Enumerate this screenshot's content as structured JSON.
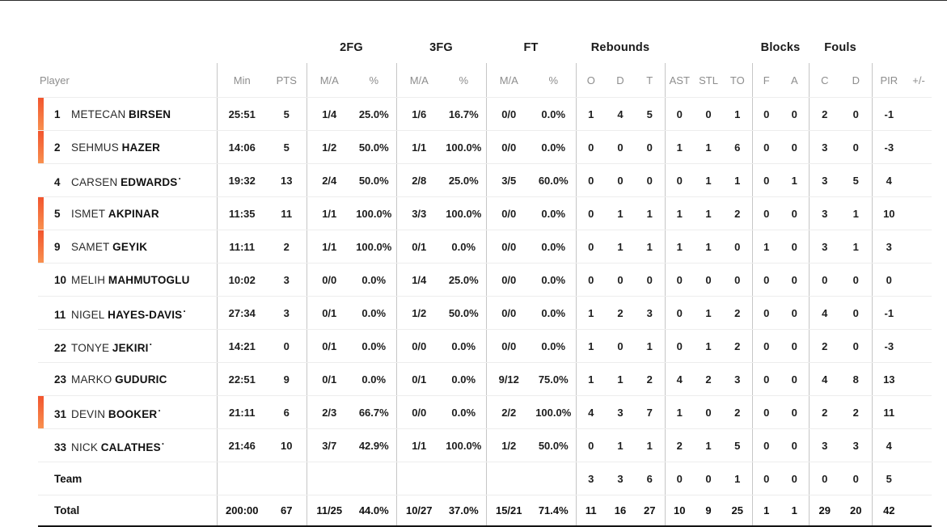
{
  "colors": {
    "oncourt_bar_top": "#f2552e",
    "oncourt_bar_bottom": "#f8904f",
    "divider": "#c6c6c6",
    "row_line": "#ededed"
  },
  "table": {
    "group_headers": {
      "fg2": "2FG",
      "fg3": "3FG",
      "ft": "FT",
      "rebounds": "Rebounds",
      "blocks": "Blocks",
      "fouls": "Fouls"
    },
    "columns": {
      "player": "Player",
      "min": "Min",
      "pts": "PTS",
      "fg2_ma": "M/A",
      "fg2_pct": "%",
      "fg3_ma": "M/A",
      "fg3_pct": "%",
      "ft_ma": "M/A",
      "ft_pct": "%",
      "reb_o": "O",
      "reb_d": "D",
      "reb_t": "T",
      "ast": "AST",
      "stl": "STL",
      "to": "TO",
      "blk_f": "F",
      "blk_a": "A",
      "foul_c": "C",
      "foul_d": "D",
      "pir": "PIR",
      "plus_minus": "+/-"
    },
    "rows": [
      {
        "number": "1",
        "first_name": "METECAN",
        "last_name": "BIRSEN",
        "starter_mark": "",
        "oncourt": true,
        "min": "25:51",
        "pts": "5",
        "fg2_ma": "1/4",
        "fg2_pct": "25.0%",
        "fg3_ma": "1/6",
        "fg3_pct": "16.7%",
        "ft_ma": "0/0",
        "ft_pct": "0.0%",
        "reb_o": "1",
        "reb_d": "4",
        "reb_t": "5",
        "ast": "0",
        "stl": "0",
        "to": "1",
        "blk_f": "0",
        "blk_a": "0",
        "foul_c": "2",
        "foul_d": "0",
        "pir": "-1",
        "plus_minus": ""
      },
      {
        "number": "2",
        "first_name": "SEHMUS",
        "last_name": "HAZER",
        "starter_mark": "",
        "oncourt": true,
        "min": "14:06",
        "pts": "5",
        "fg2_ma": "1/2",
        "fg2_pct": "50.0%",
        "fg3_ma": "1/1",
        "fg3_pct": "100.0%",
        "ft_ma": "0/0",
        "ft_pct": "0.0%",
        "reb_o": "0",
        "reb_d": "0",
        "reb_t": "0",
        "ast": "1",
        "stl": "1",
        "to": "6",
        "blk_f": "0",
        "blk_a": "0",
        "foul_c": "3",
        "foul_d": "0",
        "pir": "-3",
        "plus_minus": ""
      },
      {
        "number": "4",
        "first_name": "CARSEN",
        "last_name": "EDWARDS",
        "starter_mark": "·",
        "oncourt": false,
        "min": "19:32",
        "pts": "13",
        "fg2_ma": "2/4",
        "fg2_pct": "50.0%",
        "fg3_ma": "2/8",
        "fg3_pct": "25.0%",
        "ft_ma": "3/5",
        "ft_pct": "60.0%",
        "reb_o": "0",
        "reb_d": "0",
        "reb_t": "0",
        "ast": "0",
        "stl": "1",
        "to": "1",
        "blk_f": "0",
        "blk_a": "1",
        "foul_c": "3",
        "foul_d": "5",
        "pir": "4",
        "plus_minus": ""
      },
      {
        "number": "5",
        "first_name": "ISMET",
        "last_name": "AKPINAR",
        "starter_mark": "",
        "oncourt": true,
        "min": "11:35",
        "pts": "11",
        "fg2_ma": "1/1",
        "fg2_pct": "100.0%",
        "fg3_ma": "3/3",
        "fg3_pct": "100.0%",
        "ft_ma": "0/0",
        "ft_pct": "0.0%",
        "reb_o": "0",
        "reb_d": "1",
        "reb_t": "1",
        "ast": "1",
        "stl": "1",
        "to": "2",
        "blk_f": "0",
        "blk_a": "0",
        "foul_c": "3",
        "foul_d": "1",
        "pir": "10",
        "plus_minus": ""
      },
      {
        "number": "9",
        "first_name": "SAMET",
        "last_name": "GEYIK",
        "starter_mark": "",
        "oncourt": true,
        "min": "11:11",
        "pts": "2",
        "fg2_ma": "1/1",
        "fg2_pct": "100.0%",
        "fg3_ma": "0/1",
        "fg3_pct": "0.0%",
        "ft_ma": "0/0",
        "ft_pct": "0.0%",
        "reb_o": "0",
        "reb_d": "1",
        "reb_t": "1",
        "ast": "1",
        "stl": "1",
        "to": "0",
        "blk_f": "1",
        "blk_a": "0",
        "foul_c": "3",
        "foul_d": "1",
        "pir": "3",
        "plus_minus": ""
      },
      {
        "number": "10",
        "first_name": "MELIH",
        "last_name": "MAHMUTOGLU",
        "starter_mark": "",
        "oncourt": false,
        "min": "10:02",
        "pts": "3",
        "fg2_ma": "0/0",
        "fg2_pct": "0.0%",
        "fg3_ma": "1/4",
        "fg3_pct": "25.0%",
        "ft_ma": "0/0",
        "ft_pct": "0.0%",
        "reb_o": "0",
        "reb_d": "0",
        "reb_t": "0",
        "ast": "0",
        "stl": "0",
        "to": "0",
        "blk_f": "0",
        "blk_a": "0",
        "foul_c": "0",
        "foul_d": "0",
        "pir": "0",
        "plus_minus": ""
      },
      {
        "number": "11",
        "first_name": "NIGEL",
        "last_name": "HAYES-DAVIS",
        "starter_mark": "·",
        "oncourt": false,
        "min": "27:34",
        "pts": "3",
        "fg2_ma": "0/1",
        "fg2_pct": "0.0%",
        "fg3_ma": "1/2",
        "fg3_pct": "50.0%",
        "ft_ma": "0/0",
        "ft_pct": "0.0%",
        "reb_o": "1",
        "reb_d": "2",
        "reb_t": "3",
        "ast": "0",
        "stl": "1",
        "to": "2",
        "blk_f": "0",
        "blk_a": "0",
        "foul_c": "4",
        "foul_d": "0",
        "pir": "-1",
        "plus_minus": ""
      },
      {
        "number": "22",
        "first_name": "TONYE",
        "last_name": "JEKIRI",
        "starter_mark": "·",
        "oncourt": false,
        "min": "14:21",
        "pts": "0",
        "fg2_ma": "0/1",
        "fg2_pct": "0.0%",
        "fg3_ma": "0/0",
        "fg3_pct": "0.0%",
        "ft_ma": "0/0",
        "ft_pct": "0.0%",
        "reb_o": "1",
        "reb_d": "0",
        "reb_t": "1",
        "ast": "0",
        "stl": "1",
        "to": "2",
        "blk_f": "0",
        "blk_a": "0",
        "foul_c": "2",
        "foul_d": "0",
        "pir": "-3",
        "plus_minus": ""
      },
      {
        "number": "23",
        "first_name": "MARKO",
        "last_name": "GUDURIC",
        "starter_mark": "",
        "oncourt": false,
        "min": "22:51",
        "pts": "9",
        "fg2_ma": "0/1",
        "fg2_pct": "0.0%",
        "fg3_ma": "0/1",
        "fg3_pct": "0.0%",
        "ft_ma": "9/12",
        "ft_pct": "75.0%",
        "reb_o": "1",
        "reb_d": "1",
        "reb_t": "2",
        "ast": "4",
        "stl": "2",
        "to": "3",
        "blk_f": "0",
        "blk_a": "0",
        "foul_c": "4",
        "foul_d": "8",
        "pir": "13",
        "plus_minus": ""
      },
      {
        "number": "31",
        "first_name": "DEVIN",
        "last_name": "BOOKER",
        "starter_mark": "·",
        "oncourt": true,
        "min": "21:11",
        "pts": "6",
        "fg2_ma": "2/3",
        "fg2_pct": "66.7%",
        "fg3_ma": "0/0",
        "fg3_pct": "0.0%",
        "ft_ma": "2/2",
        "ft_pct": "100.0%",
        "reb_o": "4",
        "reb_d": "3",
        "reb_t": "7",
        "ast": "1",
        "stl": "0",
        "to": "2",
        "blk_f": "0",
        "blk_a": "0",
        "foul_c": "2",
        "foul_d": "2",
        "pir": "11",
        "plus_minus": ""
      },
      {
        "number": "33",
        "first_name": "NICK",
        "last_name": "CALATHES",
        "starter_mark": "·",
        "oncourt": false,
        "min": "21:46",
        "pts": "10",
        "fg2_ma": "3/7",
        "fg2_pct": "42.9%",
        "fg3_ma": "1/1",
        "fg3_pct": "100.0%",
        "ft_ma": "1/2",
        "ft_pct": "50.0%",
        "reb_o": "0",
        "reb_d": "1",
        "reb_t": "1",
        "ast": "2",
        "stl": "1",
        "to": "5",
        "blk_f": "0",
        "blk_a": "0",
        "foul_c": "3",
        "foul_d": "3",
        "pir": "4",
        "plus_minus": ""
      }
    ],
    "team_row": {
      "label": "Team",
      "min": "",
      "pts": "",
      "fg2_ma": "",
      "fg2_pct": "",
      "fg3_ma": "",
      "fg3_pct": "",
      "ft_ma": "",
      "ft_pct": "",
      "reb_o": "3",
      "reb_d": "3",
      "reb_t": "6",
      "ast": "0",
      "stl": "0",
      "to": "1",
      "blk_f": "0",
      "blk_a": "0",
      "foul_c": "0",
      "foul_d": "0",
      "pir": "5",
      "plus_minus": ""
    },
    "total_row": {
      "label": "Total",
      "min": "200:00",
      "pts": "67",
      "fg2_ma": "11/25",
      "fg2_pct": "44.0%",
      "fg3_ma": "10/27",
      "fg3_pct": "37.0%",
      "ft_ma": "15/21",
      "ft_pct": "71.4%",
      "reb_o": "11",
      "reb_d": "16",
      "reb_t": "27",
      "ast": "10",
      "stl": "9",
      "to": "25",
      "blk_f": "1",
      "blk_a": "1",
      "foul_c": "29",
      "foul_d": "20",
      "pir": "42",
      "plus_minus": ""
    }
  }
}
